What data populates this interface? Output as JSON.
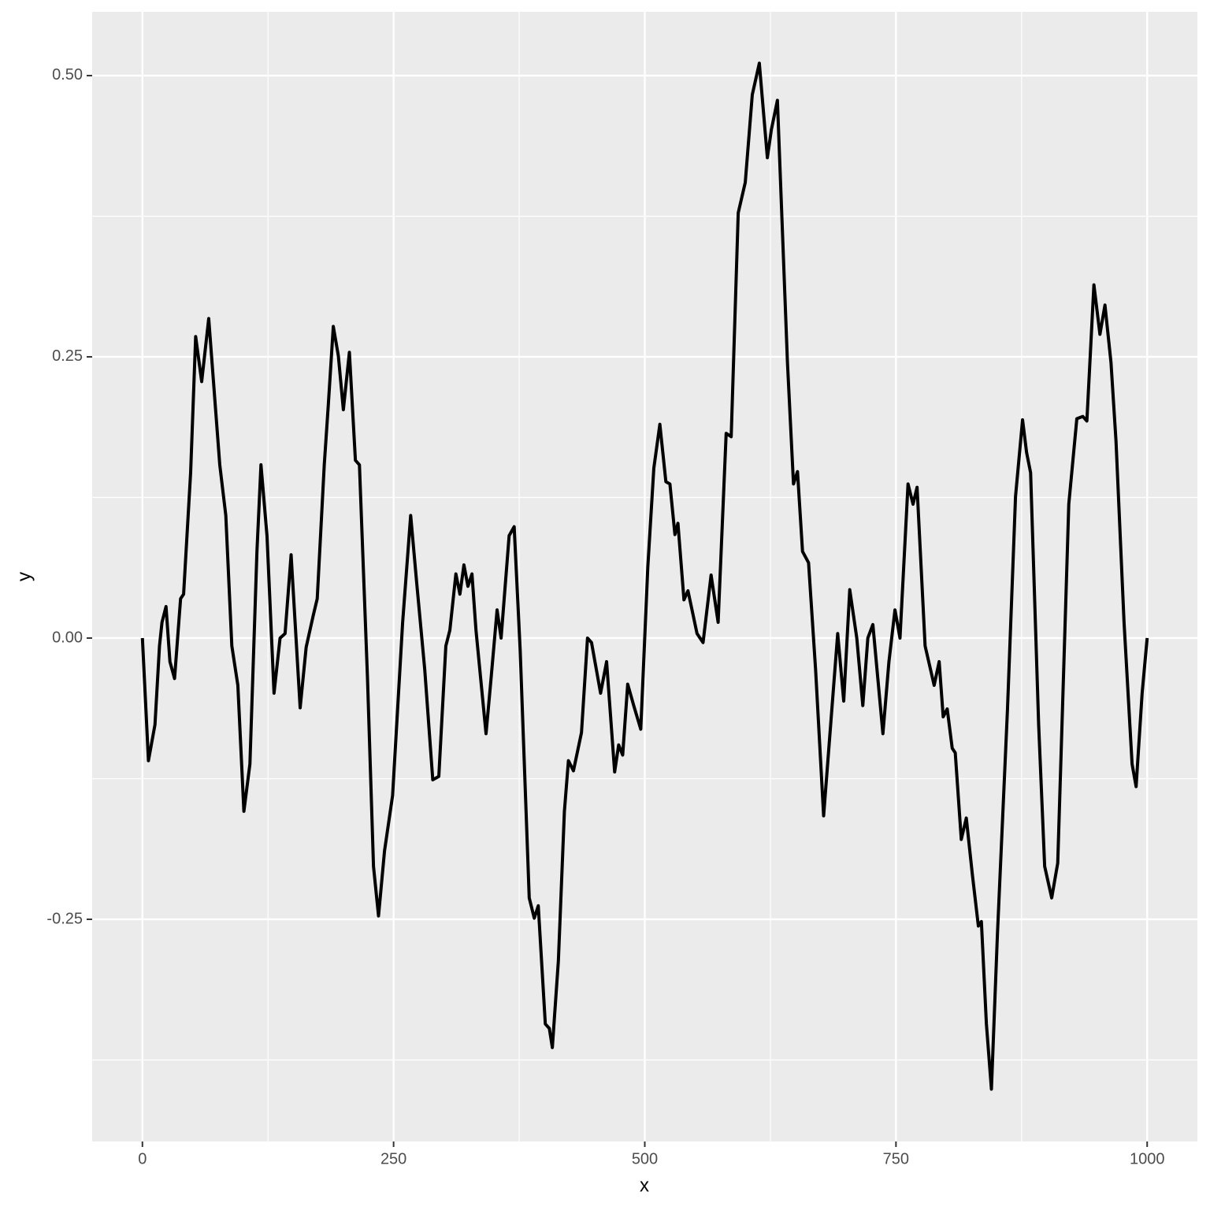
{
  "chart_data": {
    "type": "line",
    "x_label": "x",
    "y_label": "y",
    "x": [
      0,
      6,
      12.5,
      17,
      19.5,
      23.5,
      27.4,
      32,
      38,
      41,
      48,
      53,
      59,
      66,
      77,
      83,
      89,
      95,
      101,
      107,
      114,
      118,
      124,
      131,
      137,
      142,
      148,
      157,
      163,
      170,
      174,
      181,
      185,
      190,
      195,
      200,
      206,
      212,
      216,
      224,
      230,
      235,
      241,
      249,
      259,
      267,
      273,
      281,
      289,
      295,
      302,
      306,
      312,
      316,
      320,
      324,
      328,
      332,
      342,
      347,
      353,
      357,
      365,
      370,
      376,
      385,
      390,
      394,
      401,
      405,
      408,
      414,
      420,
      424,
      429,
      437,
      443,
      447,
      456,
      462,
      470,
      474,
      478,
      483,
      489,
      496,
      503,
      509,
      515,
      521,
      525,
      530,
      533,
      539,
      543,
      552,
      558,
      566,
      573,
      581,
      586,
      593,
      600,
      607,
      614,
      622,
      626,
      632,
      642,
      648,
      652,
      657,
      663,
      670,
      678,
      685,
      692,
      698,
      704,
      711,
      717,
      722,
      727,
      737,
      743,
      749,
      754,
      762,
      767,
      771,
      779,
      788,
      793,
      797,
      801,
      806,
      809,
      815,
      820,
      826,
      832,
      835,
      840,
      845,
      851,
      861,
      869,
      876,
      880,
      884,
      892,
      898,
      905,
      911,
      922,
      930,
      936,
      940,
      947,
      953,
      958,
      964,
      969,
      977,
      985,
      989,
      995,
      1000
    ],
    "values": [
      0,
      -0.109,
      -0.077,
      -0.007,
      0.014,
      0.028,
      -0.021,
      -0.036,
      0.035,
      0.039,
      0.147,
      0.268,
      0.228,
      0.284,
      0.154,
      0.109,
      -0.007,
      -0.042,
      -0.154,
      -0.112,
      0.077,
      0.154,
      0.091,
      -0.049,
      0,
      0.004,
      0.074,
      -0.062,
      -0.008,
      0.02,
      0.035,
      0.154,
      0.207,
      0.277,
      0.251,
      0.203,
      0.254,
      0.158,
      0.154,
      -0.035,
      -0.203,
      -0.247,
      -0.189,
      -0.14,
      0.014,
      0.109,
      0.049,
      -0.028,
      -0.126,
      -0.123,
      -0.007,
      0.007,
      0.057,
      0.039,
      0.065,
      0.046,
      0.057,
      0.007,
      -0.085,
      -0.036,
      0.025,
      0,
      0.091,
      0.099,
      -0.011,
      -0.231,
      -0.249,
      -0.238,
      -0.343,
      -0.347,
      -0.364,
      -0.287,
      -0.154,
      -0.109,
      -0.118,
      -0.084,
      0,
      -0.004,
      -0.049,
      -0.021,
      -0.119,
      -0.095,
      -0.104,
      -0.041,
      -0.06,
      -0.081,
      0.063,
      0.151,
      0.19,
      0.139,
      0.137,
      0.092,
      0.102,
      0.034,
      0.042,
      0.004,
      -0.004,
      0.056,
      0.014,
      0.182,
      0.179,
      0.378,
      0.405,
      0.483,
      0.511,
      0.427,
      0.452,
      0.478,
      0.245,
      0.137,
      0.148,
      0.077,
      0.067,
      -0.028,
      -0.158,
      -0.077,
      0.004,
      -0.056,
      0.043,
      0,
      -0.06,
      0,
      0.012,
      -0.085,
      -0.021,
      0.025,
      0,
      0.137,
      0.119,
      0.134,
      -0.007,
      -0.042,
      -0.021,
      -0.07,
      -0.063,
      -0.098,
      -0.102,
      -0.179,
      -0.16,
      -0.21,
      -0.256,
      -0.252,
      -0.343,
      -0.401,
      -0.263,
      -0.063,
      0.126,
      0.194,
      0.165,
      0.147,
      -0.077,
      -0.203,
      -0.231,
      -0.2,
      0.119,
      0.195,
      0.197,
      0.193,
      0.314,
      0.27,
      0.296,
      0.245,
      0.175,
      0.014,
      -0.112,
      -0.132,
      -0.049,
      0
    ],
    "color": "#000000",
    "xlim": [
      -50,
      1050
    ],
    "xticks": [
      0,
      250,
      500,
      750,
      1000
    ],
    "ylim": [
      -0.4475,
      0.5567
    ],
    "yticks": [
      -0.25,
      {
        "value": 0,
        "label": "0.00"
      },
      0.25,
      {
        "value": 0.5,
        "label": "0.50"
      }
    ],
    "grid": true
  }
}
